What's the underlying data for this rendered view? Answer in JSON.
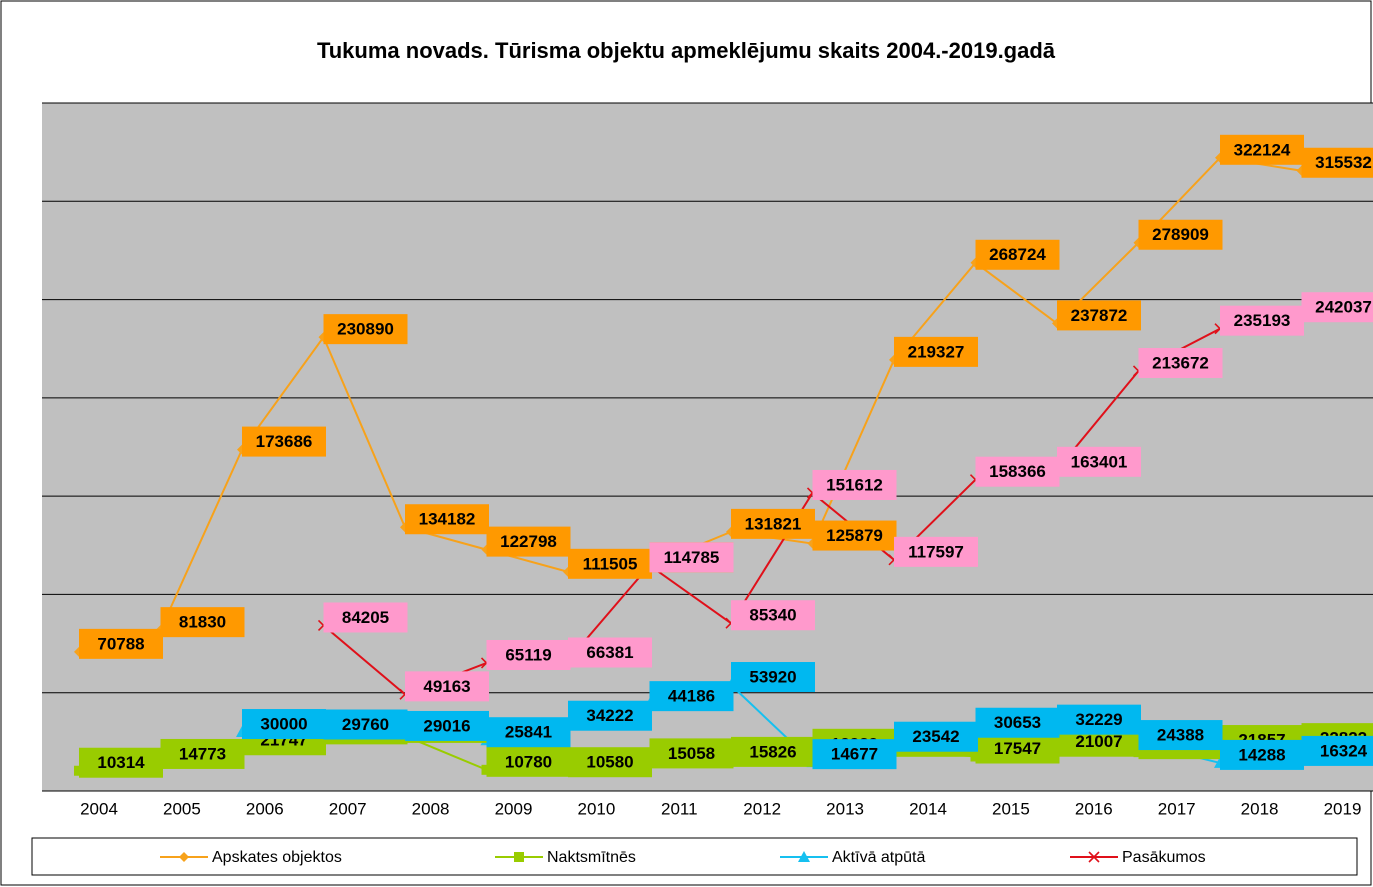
{
  "chart_data": {
    "type": "line",
    "title": "Tukuma novads. Tūrisma objektu apmeklējumu skaits 2004.-2019.gadā",
    "categories": [
      "2004",
      "2005",
      "2006",
      "2007",
      "2008",
      "2009",
      "2010",
      "2011",
      "2012",
      "2013",
      "2014",
      "2015",
      "2016",
      "2017",
      "2018",
      "2019"
    ],
    "ylim": [
      0,
      350000
    ],
    "yticks": [
      0,
      50000,
      100000,
      150000,
      200000,
      250000,
      300000,
      350000
    ],
    "grid": true,
    "legend": "bottom",
    "series": [
      {
        "name": "Apskates objektos",
        "color": "#f7a21b",
        "label_color": "#ff9900",
        "marker": "diamond",
        "values": [
          70788,
          81830,
          173686,
          230890,
          134182,
          122798,
          111505,
          114783,
          131821,
          125879,
          219327,
          268724,
          237872,
          278909,
          322124,
          315532
        ]
      },
      {
        "name": "Naktsmītnēs",
        "color": "#99cc00",
        "label_color": "#99cc00",
        "marker": "square",
        "values": [
          10314,
          14773,
          21747,
          27284,
          28023,
          10780,
          10580,
          15058,
          15826,
          19939,
          20954,
          17547,
          21007,
          19772,
          21857,
          22822
        ]
      },
      {
        "name": "Aktīvā atpūtā",
        "color": "#16c0f0",
        "label_color": "#00b8f0",
        "marker": "triangle",
        "values": [
          null,
          null,
          30000,
          29760,
          29016,
          25841,
          34222,
          44186,
          53920,
          14677,
          23542,
          30653,
          32229,
          24388,
          14288,
          16324
        ]
      },
      {
        "name": "Pasākumos",
        "color": "#e0101a",
        "label_color": "#ff99cc",
        "marker": "x",
        "values": [
          null,
          null,
          null,
          84205,
          49163,
          65119,
          66381,
          114785,
          85340,
          151612,
          117597,
          158366,
          163401,
          213672,
          235193,
          242037
        ]
      }
    ]
  }
}
